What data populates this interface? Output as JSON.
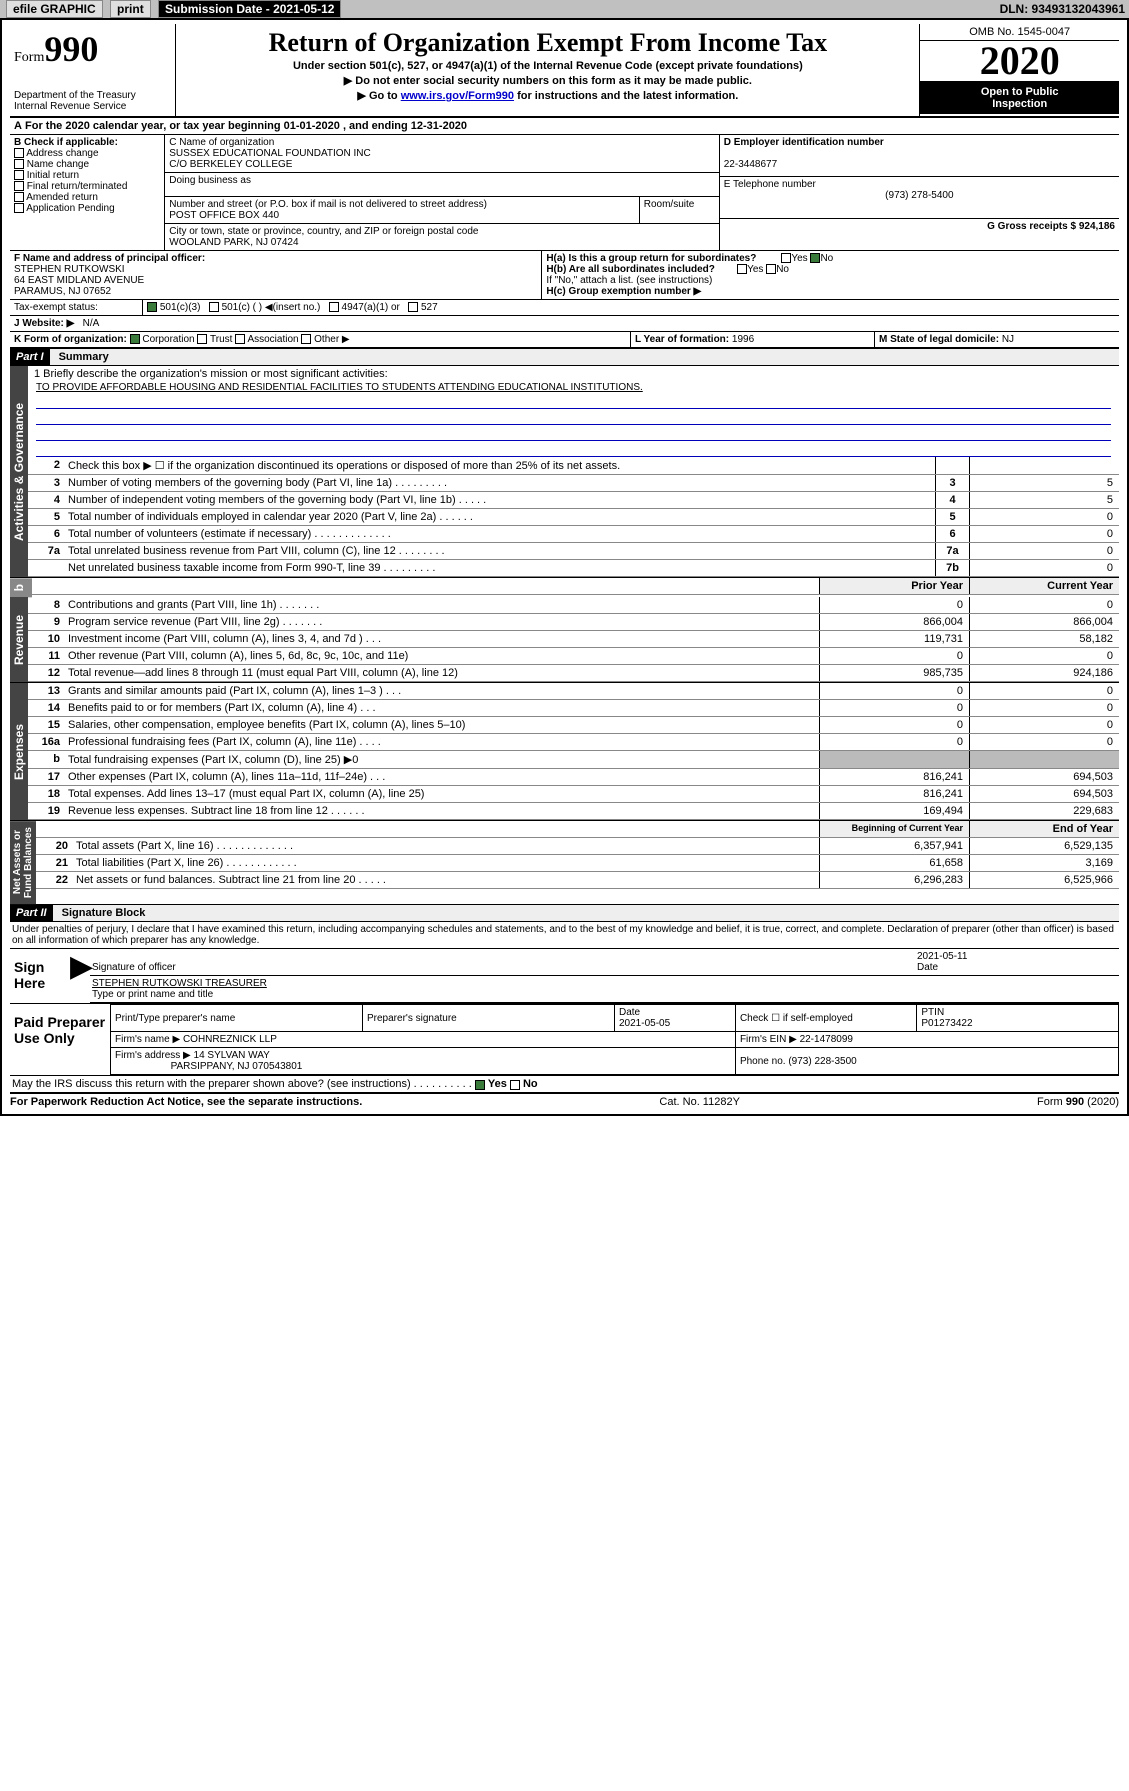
{
  "topbar": {
    "efile": "efile GRAPHIC",
    "print": "print",
    "sub_label": "Submission Date - 2021-05-12",
    "dln": "DLN: 93493132043961"
  },
  "header": {
    "form_word": "Form",
    "form_num": "990",
    "dept": "Department of the Treasury\nInternal Revenue Service",
    "title": "Return of Organization Exempt From Income Tax",
    "sub1": "Under section 501(c), 527, or 4947(a)(1) of the Internal Revenue Code (except private foundations)",
    "sub2": "▶ Do not enter social security numbers on this form as it may be made public.",
    "sub3_pre": "▶ Go to ",
    "sub3_link": "www.irs.gov/Form990",
    "sub3_post": " for instructions and the latest information.",
    "omb": "OMB No. 1545-0047",
    "year": "2020",
    "ribbon1": "Open to Public",
    "ribbon2": "Inspection"
  },
  "lineA": "For the 2020 calendar year, or tax year beginning 01-01-2020    , and ending 12-31-2020",
  "boxB": {
    "hdr": "B Check if applicable:",
    "opts": [
      "Address change",
      "Name change",
      "Initial return",
      "Final return/terminated",
      "Amended return",
      "Application Pending"
    ]
  },
  "boxC": {
    "name_lbl": "C Name of organization",
    "name": "SUSSEX EDUCATIONAL FOUNDATION INC",
    "care": "C/O BERKELEY COLLEGE",
    "dba_lbl": "Doing business as",
    "addr_lbl": "Number and street (or P.O. box if mail is not delivered to street address)",
    "room_lbl": "Room/suite",
    "addr": "POST OFFICE BOX 440",
    "city_lbl": "City or town, state or province, country, and ZIP or foreign postal code",
    "city": "WOOLAND PARK, NJ  07424"
  },
  "boxD": {
    "lbl": "D Employer identification number",
    "val": "22-3448677"
  },
  "boxE": {
    "lbl": "E Telephone number",
    "val": "(973) 278-5400"
  },
  "boxG": {
    "lbl": "G Gross receipts $",
    "val": "924,186"
  },
  "boxF": {
    "lbl": "F  Name and address of principal officer:",
    "name": "STEPHEN RUTKOWSKI",
    "addr1": "64 EAST MIDLAND AVENUE",
    "addr2": "PARAMUS, NJ  07652"
  },
  "boxH": {
    "a": "H(a)  Is this a group return for subordinates?",
    "b": "H(b)  Are all subordinates included?",
    "note": "If \"No,\" attach a list. (see instructions)",
    "c": "H(c)  Group exemption number ▶",
    "yes": "Yes",
    "no": "No"
  },
  "taxexempt": {
    "lbl": "Tax-exempt status:",
    "o1": "501(c)(3)",
    "o2": "501(c) (   ) ◀(insert no.)",
    "o3": "4947(a)(1) or",
    "o4": "527"
  },
  "boxJ": {
    "lbl": "J  Website: ▶",
    "val": "N/A"
  },
  "boxK": {
    "lbl": "K Form of organization:",
    "o1": "Corporation",
    "o2": "Trust",
    "o3": "Association",
    "o4": "Other ▶"
  },
  "boxL": {
    "lbl": "L Year of formation:",
    "val": "1996"
  },
  "boxM": {
    "lbl": "M State of legal domicile:",
    "val": "NJ"
  },
  "part1": {
    "hdr": "Part I",
    "title": "Summary"
  },
  "mission": {
    "q": "1  Briefly describe the organization's mission or most significant activities:",
    "text": "TO PROVIDE AFFORDABLE HOUSING AND RESIDENTIAL FACILITIES TO STUDENTS ATTENDING EDUCATIONAL INSTITUTIONS."
  },
  "tabs": {
    "gov": "Activities & Governance",
    "rev": "Revenue",
    "exp": "Expenses",
    "net": "Net Assets or\nFund Balances"
  },
  "lines_gov": [
    {
      "n": "2",
      "d": "Check this box ▶ ☐  if the organization discontinued its operations or disposed of more than 25% of its net assets.",
      "box": "",
      "v": ""
    },
    {
      "n": "3",
      "d": "Number of voting members of the governing body (Part VI, line 1a)  .  .  .  .  .  .  .  .  .",
      "box": "3",
      "v": "5"
    },
    {
      "n": "4",
      "d": "Number of independent voting members of the governing body (Part VI, line 1b)  .  .  .  .  .",
      "box": "4",
      "v": "5"
    },
    {
      "n": "5",
      "d": "Total number of individuals employed in calendar year 2020 (Part V, line 2a)  .  .  .  .  .  .",
      "box": "5",
      "v": "0"
    },
    {
      "n": "6",
      "d": "Total number of volunteers (estimate if necessary)  .  .  .  .  .  .  .  .  .  .  .  .  .",
      "box": "6",
      "v": "0"
    },
    {
      "n": "7a",
      "d": "Total unrelated business revenue from Part VIII, column (C), line 12  .  .  .  .  .  .  .  .",
      "box": "7a",
      "v": "0"
    },
    {
      "n": "",
      "d": "Net unrelated business taxable income from Form 990-T, line 39  .  .  .  .  .  .  .  .  .",
      "box": "7b",
      "v": "0"
    }
  ],
  "col_hdrs": {
    "prior": "Prior Year",
    "current": "Current Year",
    "begin": "Beginning of Current Year",
    "end": "End of Year"
  },
  "lines_rev": [
    {
      "n": "8",
      "d": "Contributions and grants (Part VIII, line 1h)  .  .  .  .  .  .  .",
      "p": "0",
      "c": "0"
    },
    {
      "n": "9",
      "d": "Program service revenue (Part VIII, line 2g)  .  .  .  .  .  .  .",
      "p": "866,004",
      "c": "866,004"
    },
    {
      "n": "10",
      "d": "Investment income (Part VIII, column (A), lines 3, 4, and 7d )  .  .  .",
      "p": "119,731",
      "c": "58,182"
    },
    {
      "n": "11",
      "d": "Other revenue (Part VIII, column (A), lines 5, 6d, 8c, 9c, 10c, and 11e)",
      "p": "0",
      "c": "0"
    },
    {
      "n": "12",
      "d": "Total revenue—add lines 8 through 11 (must equal Part VIII, column (A), line 12)",
      "p": "985,735",
      "c": "924,186"
    }
  ],
  "lines_exp": [
    {
      "n": "13",
      "d": "Grants and similar amounts paid (Part IX, column (A), lines 1–3 )  .  .  .",
      "p": "0",
      "c": "0"
    },
    {
      "n": "14",
      "d": "Benefits paid to or for members (Part IX, column (A), line 4)  .  .  .",
      "p": "0",
      "c": "0"
    },
    {
      "n": "15",
      "d": "Salaries, other compensation, employee benefits (Part IX, column (A), lines 5–10)",
      "p": "0",
      "c": "0"
    },
    {
      "n": "16a",
      "d": "Professional fundraising fees (Part IX, column (A), line 11e)  .  .  .  .",
      "p": "0",
      "c": "0"
    },
    {
      "n": "b",
      "d": "Total fundraising expenses (Part IX, column (D), line 25) ▶0",
      "p": "",
      "c": "",
      "gray": true
    },
    {
      "n": "17",
      "d": "Other expenses (Part IX, column (A), lines 11a–11d, 11f–24e)  .  .  .",
      "p": "816,241",
      "c": "694,503"
    },
    {
      "n": "18",
      "d": "Total expenses. Add lines 13–17 (must equal Part IX, column (A), line 25)",
      "p": "816,241",
      "c": "694,503"
    },
    {
      "n": "19",
      "d": "Revenue less expenses. Subtract line 18 from line 12  .  .  .  .  .  .",
      "p": "169,494",
      "c": "229,683"
    }
  ],
  "lines_net": [
    {
      "n": "20",
      "d": "Total assets (Part X, line 16)  .  .  .  .  .  .  .  .  .  .  .  .  .",
      "p": "6,357,941",
      "c": "6,529,135"
    },
    {
      "n": "21",
      "d": "Total liabilities (Part X, line 26)  .  .  .  .  .  .  .  .  .  .  .  .",
      "p": "61,658",
      "c": "3,169"
    },
    {
      "n": "22",
      "d": "Net assets or fund balances. Subtract line 21 from line 20  .  .  .  .  .",
      "p": "6,296,283",
      "c": "6,525,966"
    }
  ],
  "part2": {
    "hdr": "Part II",
    "title": "Signature Block"
  },
  "perjury": "Under penalties of perjury, I declare that I have examined this return, including accompanying schedules and statements, and to the best of my knowledge and belief, it is true, correct, and complete. Declaration of preparer (other than officer) is based on all information of which preparer has any knowledge.",
  "sign": {
    "here": "Sign Here",
    "sig_lbl": "Signature of officer",
    "date": "2021-05-11",
    "date_lbl": "Date",
    "name": "STEPHEN RUTKOWSKI TREASURER",
    "name_lbl": "Type or print name and title"
  },
  "prep": {
    "lbl": "Paid Preparer Use Only",
    "col1": "Print/Type preparer's name",
    "col2": "Preparer's signature",
    "col3": "Date",
    "date": "2021-05-05",
    "col4": "Check ☐ if self-employed",
    "col5": "PTIN",
    "ptin": "P01273422",
    "firm_lbl": "Firm's name      ▶",
    "firm": "COHNREZNICK LLP",
    "ein_lbl": "Firm's EIN ▶",
    "ein": "22-1478099",
    "addr_lbl": "Firm's address ▶",
    "addr1": "14 SYLVAN WAY",
    "addr2": "PARSIPPANY, NJ  070543801",
    "phone_lbl": "Phone no.",
    "phone": "(973) 228-3500"
  },
  "discuss": "May the IRS discuss this return with the preparer shown above? (see instructions)  .  .  .  .  .  .  .  .  .  .",
  "footer": {
    "left": "For Paperwork Reduction Act Notice, see the separate instructions.",
    "mid": "Cat. No. 11282Y",
    "right": "Form 990 (2020)"
  }
}
